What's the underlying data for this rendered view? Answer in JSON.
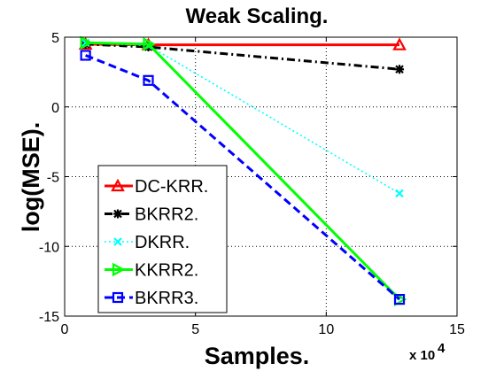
{
  "chart_data": {
    "type": "line",
    "title": "Weak Scaling.",
    "xlabel": "Samples.",
    "ylabel": "log(MSE).",
    "x_multiplier_label": "x 10",
    "x_multiplier_exponent": "4",
    "xlim": [
      0,
      150000
    ],
    "ylim": [
      -15,
      5
    ],
    "x_ticks": [
      0,
      50000,
      100000,
      150000
    ],
    "x_tick_labels": [
      "0",
      "5",
      "10",
      "15"
    ],
    "y_ticks": [
      5,
      0,
      -5,
      -10,
      -15
    ],
    "y_tick_labels": [
      "5",
      "0",
      "-5",
      "-10",
      "-15"
    ],
    "grid": true,
    "legend_position": "bottom-left",
    "series": [
      {
        "name": "DC-KRR.",
        "color": "#ff0000",
        "line_style": "solid",
        "marker": "triangle-up",
        "x": [
          8000,
          32000,
          128000
        ],
        "y": [
          4.5,
          4.45,
          4.45
        ]
      },
      {
        "name": "BKRR2.",
        "color": "#000000",
        "line_style": "dashdot",
        "marker": "star",
        "x": [
          8000,
          32000,
          128000
        ],
        "y": [
          4.5,
          4.3,
          2.7
        ]
      },
      {
        "name": "DKRR.",
        "color": "#00ffff",
        "line_style": "dotted",
        "marker": "x",
        "x": [
          8000,
          32000,
          128000
        ],
        "y": [
          4.6,
          4.4,
          -6.2
        ]
      },
      {
        "name": "KKRR2.",
        "color": "#00ff00",
        "line_style": "solid",
        "marker": "triangle-right",
        "x": [
          8000,
          32000,
          128000
        ],
        "y": [
          4.6,
          4.5,
          -13.8
        ]
      },
      {
        "name": "BKRR3.",
        "color": "#0000ff",
        "line_style": "dashed",
        "marker": "square",
        "x": [
          8000,
          32000,
          128000
        ],
        "y": [
          3.7,
          1.9,
          -13.8
        ]
      }
    ]
  }
}
